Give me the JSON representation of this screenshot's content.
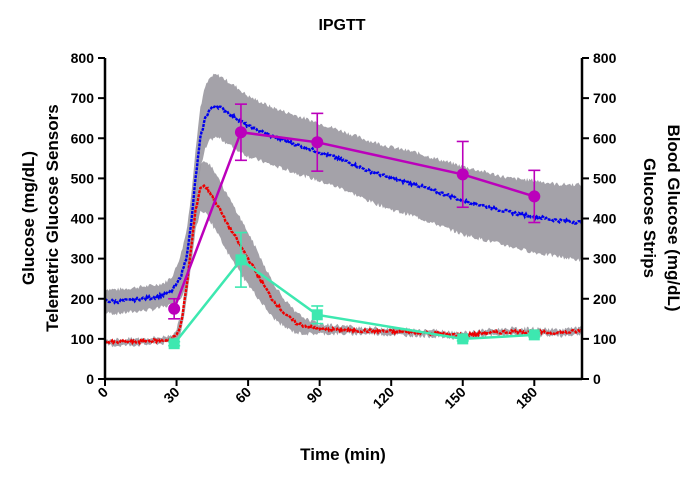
{
  "chart_data": {
    "type": "line",
    "title": "IPGTT",
    "xlabel": "Time (min)",
    "ylabel_left": [
      "Glucose (mg/dL)",
      "Telemetric Glucose Sensors"
    ],
    "ylabel_right": [
      "Blood Glucose (mg/dL)",
      "Glucose Strips"
    ],
    "xlim": [
      0,
      200
    ],
    "ylim": [
      0,
      800
    ],
    "x_ticks": [
      0,
      30,
      60,
      90,
      120,
      150,
      180
    ],
    "x_tick_labels": [
      "0",
      "30",
      "60",
      "90",
      "120",
      "150",
      "180"
    ],
    "y_ticks": [
      0,
      100,
      200,
      300,
      400,
      500,
      600,
      700,
      800
    ],
    "y_tick_labels": [
      "0",
      "100",
      "200",
      "300",
      "400",
      "500",
      "600",
      "700",
      "800"
    ],
    "grid": false,
    "legend": "none",
    "sensor_series": [
      {
        "color": "#0000ee",
        "band_color": "#9a98a0",
        "x": [
          0,
          5,
          10,
          15,
          20,
          25,
          28,
          30,
          32,
          34,
          36,
          38,
          40,
          42,
          44,
          46,
          48,
          50,
          55,
          60,
          70,
          80,
          90,
          100,
          110,
          120,
          130,
          140,
          150,
          160,
          170,
          180,
          190,
          200
        ],
        "y": [
          195,
          193,
          196,
          200,
          203,
          210,
          220,
          235,
          260,
          300,
          380,
          500,
          600,
          650,
          672,
          680,
          678,
          670,
          650,
          630,
          605,
          585,
          565,
          545,
          520,
          500,
          485,
          465,
          445,
          430,
          415,
          405,
          395,
          390
        ],
        "band": [
          30,
          30,
          30,
          30,
          30,
          30,
          35,
          45,
          55,
          65,
          70,
          75,
          78,
          78,
          78,
          78,
          78,
          78,
          78,
          75,
          72,
          72,
          72,
          72,
          75,
          78,
          80,
          82,
          85,
          85,
          85,
          90,
          90,
          95
        ]
      },
      {
        "color": "#ee0000",
        "band_color": "#9a98a0",
        "x": [
          0,
          5,
          10,
          15,
          20,
          25,
          28,
          30,
          32,
          34,
          36,
          38,
          40,
          42,
          44,
          46,
          48,
          50,
          55,
          60,
          65,
          70,
          75,
          80,
          85,
          90,
          100,
          110,
          120,
          130,
          140,
          150,
          160,
          170,
          180,
          190,
          200
        ],
        "y": [
          92,
          91,
          92,
          93,
          95,
          97,
          100,
          110,
          140,
          220,
          320,
          420,
          478,
          480,
          465,
          445,
          425,
          400,
          350,
          300,
          250,
          200,
          165,
          140,
          130,
          125,
          122,
          120,
          118,
          116,
          113,
          108,
          115,
          118,
          118,
          115,
          120
        ],
        "band": [
          8,
          8,
          8,
          8,
          8,
          8,
          10,
          15,
          20,
          30,
          40,
          50,
          60,
          65,
          70,
          72,
          72,
          72,
          70,
          65,
          55,
          45,
          35,
          25,
          18,
          12,
          10,
          8,
          8,
          8,
          8,
          8,
          8,
          8,
          8,
          8,
          8
        ]
      }
    ],
    "strip_series": [
      {
        "color": "#bb00bb",
        "marker": "circle",
        "x": [
          29,
          57,
          89,
          150,
          180
        ],
        "y": [
          175,
          615,
          590,
          510,
          455
        ],
        "err": [
          25,
          70,
          72,
          82,
          65
        ]
      },
      {
        "color": "#3de8b0",
        "marker": "square",
        "x": [
          29,
          57,
          89,
          150,
          180
        ],
        "y": [
          88,
          297,
          160,
          100,
          110
        ],
        "err": [
          5,
          68,
          22,
          5,
          5
        ]
      }
    ]
  }
}
